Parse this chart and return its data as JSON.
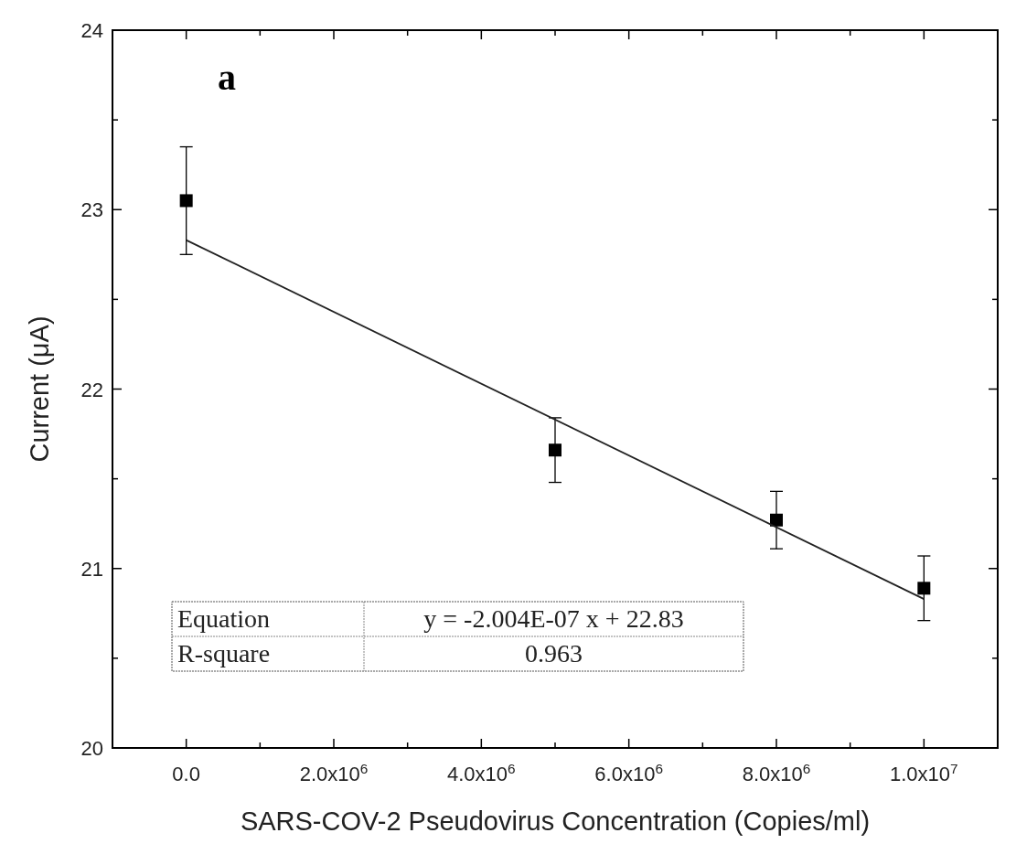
{
  "chart_data": {
    "type": "scatter",
    "xlabel": "SARS-COV-2 Pseudovirus Concentration (Copies/ml)",
    "ylabel": "Current (μA)",
    "xlim": [
      -1000000,
      11000000
    ],
    "xticks": [
      {
        "value": -1000000,
        "label": null
      },
      {
        "value": 0,
        "label": "0.0"
      },
      {
        "value": 1000000,
        "label": null
      },
      {
        "value": 2000000,
        "label": "2.0x10$^{6}$"
      },
      {
        "value": 3000000,
        "label": null
      },
      {
        "value": 4000000,
        "label": "4.0x10$^{6}$"
      },
      {
        "value": 5000000,
        "label": null
      },
      {
        "value": 6000000,
        "label": "6.0x10$^{6}$"
      },
      {
        "value": 7000000,
        "label": null
      },
      {
        "value": 8000000,
        "label": "8.0x10$^{6}$"
      },
      {
        "value": 9000000,
        "label": null
      },
      {
        "value": 10000000,
        "label": "1.0x10$^{7}$"
      },
      {
        "value": 11000000,
        "label": null
      }
    ],
    "ylim": [
      20,
      24
    ],
    "yticks": [
      20,
      {
        "value": 20.5,
        "label": null
      },
      21,
      {
        "value": 21.5,
        "label": null
      },
      22,
      {
        "value": 22.5,
        "label": null
      },
      23,
      {
        "value": 23.5,
        "label": null
      },
      24
    ],
    "grid": false,
    "series": [
      {
        "marker": "square",
        "color": "#000000",
        "x": [
          0,
          5000000,
          8000000,
          10000000
        ],
        "values": [
          23.05,
          21.66,
          21.27,
          20.89
        ],
        "errors": [
          0.3,
          0.18,
          0.16,
          0.18
        ]
      },
      {
        "type": "line",
        "color": "#222222",
        "x": [
          0,
          10000000
        ],
        "values": [
          22.83,
          20.83
        ]
      }
    ],
    "annotations": [
      "a",
      "Equation",
      "y = -2.004E-07 x + 22.83",
      "R-square",
      "0.963"
    ]
  }
}
